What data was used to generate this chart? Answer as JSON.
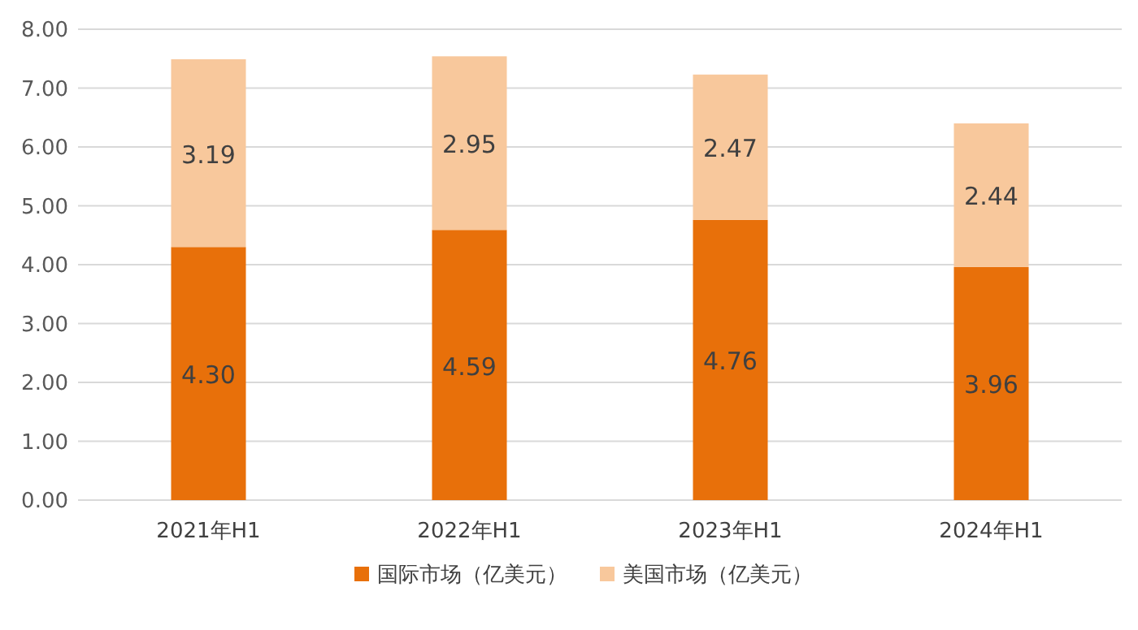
{
  "chart_data": {
    "type": "bar",
    "stacked": true,
    "categories": [
      "2021年H1",
      "2022年H1",
      "2023年H1",
      "2024年H1"
    ],
    "series": [
      {
        "name": "国际市场（亿美元）",
        "color": "#e8700a",
        "values": [
          4.3,
          4.59,
          4.76,
          3.96
        ],
        "value_labels": [
          "4.30",
          "4.59",
          "4.76",
          "3.96"
        ]
      },
      {
        "name": "美国市场（亿美元）",
        "color": "#f8c89c",
        "values": [
          3.19,
          2.95,
          2.47,
          2.44
        ],
        "value_labels": [
          "3.19",
          "2.95",
          "2.47",
          "2.44"
        ]
      }
    ],
    "ylim": [
      0,
      8
    ],
    "yticks": [
      {
        "value": 0,
        "label": "0.00"
      },
      {
        "value": 1,
        "label": "1.00"
      },
      {
        "value": 2,
        "label": "2.00"
      },
      {
        "value": 3,
        "label": "3.00"
      },
      {
        "value": 4,
        "label": "4.00"
      },
      {
        "value": 5,
        "label": "5.00"
      },
      {
        "value": 6,
        "label": "6.00"
      },
      {
        "value": 7,
        "label": "7.00"
      },
      {
        "value": 8,
        "label": "8.00"
      }
    ],
    "grid": "y",
    "legend": "bottom"
  }
}
